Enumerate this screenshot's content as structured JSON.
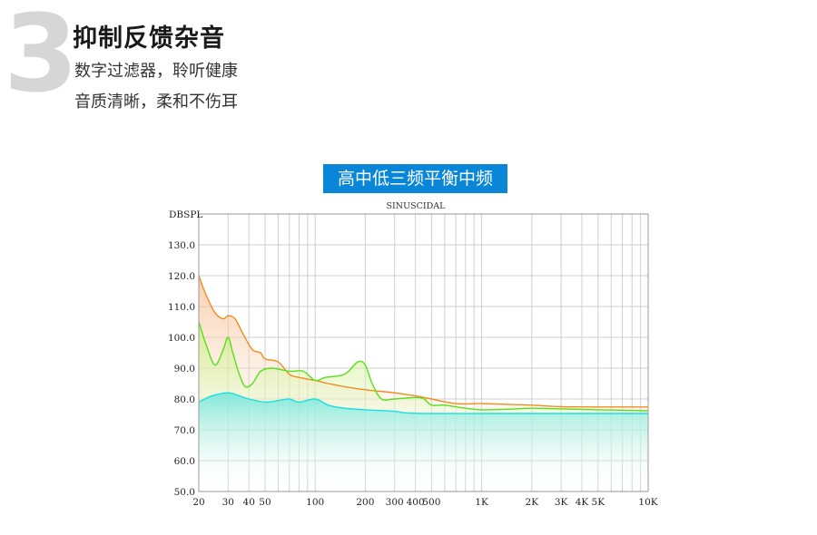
{
  "section": {
    "number": "3",
    "title": "抑制反馈杂音",
    "line1": "数字过滤器，聆听健康",
    "line2": "音质清晰，柔和不伤耳"
  },
  "banner": {
    "label": "高中低三频平衡中频"
  },
  "chart_data": {
    "type": "area",
    "title": "SINUSCIDAL",
    "ylabel": "DBSPL",
    "xscale": "log",
    "xlim": [
      20,
      10000
    ],
    "ylim": [
      50,
      140
    ],
    "y_ticks": [
      {
        "v": 50,
        "label": "50.0"
      },
      {
        "v": 60,
        "label": "60.0"
      },
      {
        "v": 70,
        "label": "70.0"
      },
      {
        "v": 80,
        "label": "80.0"
      },
      {
        "v": 90,
        "label": "90.0"
      },
      {
        "v": 100,
        "label": "100.0"
      },
      {
        "v": 110,
        "label": "110.0"
      },
      {
        "v": 120,
        "label": "120.0"
      },
      {
        "v": 130,
        "label": "130.0"
      }
    ],
    "x_ticks": [
      {
        "v": 20,
        "label": "20"
      },
      {
        "v": 30,
        "label": "30"
      },
      {
        "v": 40,
        "label": "40"
      },
      {
        "v": 50,
        "label": "50"
      },
      {
        "v": 100,
        "label": "100"
      },
      {
        "v": 200,
        "label": "200"
      },
      {
        "v": 300,
        "label": "300"
      },
      {
        "v": 400,
        "label": "400"
      },
      {
        "v": 500,
        "label": "500"
      },
      {
        "v": 1000,
        "label": "1K"
      },
      {
        "v": 2000,
        "label": "2K"
      },
      {
        "v": 3000,
        "label": "3K"
      },
      {
        "v": 4000,
        "label": "4K"
      },
      {
        "v": 5000,
        "label": "5K"
      },
      {
        "v": 10000,
        "label": "10K"
      }
    ],
    "grid": true,
    "series": [
      {
        "color": "#f28c1e",
        "fill": "#f7c9a6",
        "points": [
          [
            20,
            120
          ],
          [
            22,
            114
          ],
          [
            25,
            108
          ],
          [
            28,
            106
          ],
          [
            30,
            107
          ],
          [
            33,
            106
          ],
          [
            37,
            101
          ],
          [
            42,
            96
          ],
          [
            47,
            95
          ],
          [
            50,
            93
          ],
          [
            60,
            92
          ],
          [
            70,
            88
          ],
          [
            80,
            87
          ],
          [
            100,
            86
          ],
          [
            120,
            85
          ],
          [
            150,
            84
          ],
          [
            200,
            83
          ],
          [
            300,
            82
          ],
          [
            400,
            81
          ],
          [
            500,
            80
          ],
          [
            700,
            78.5
          ],
          [
            1000,
            78.5
          ],
          [
            1500,
            78.2
          ],
          [
            2000,
            78
          ],
          [
            3000,
            77.5
          ],
          [
            5000,
            77.4
          ],
          [
            10000,
            77.4
          ]
        ]
      },
      {
        "color": "#56e01a",
        "fill": "#d4f3a8",
        "points": [
          [
            20,
            105
          ],
          [
            22,
            98
          ],
          [
            25,
            91
          ],
          [
            28,
            96
          ],
          [
            30,
            100
          ],
          [
            32,
            95
          ],
          [
            35,
            88
          ],
          [
            38,
            84
          ],
          [
            42,
            85
          ],
          [
            47,
            89
          ],
          [
            55,
            90
          ],
          [
            70,
            89
          ],
          [
            85,
            89
          ],
          [
            100,
            86
          ],
          [
            115,
            87
          ],
          [
            150,
            88
          ],
          [
            180,
            92
          ],
          [
            200,
            91
          ],
          [
            220,
            85
          ],
          [
            250,
            80
          ],
          [
            300,
            80
          ],
          [
            400,
            80.5
          ],
          [
            450,
            80
          ],
          [
            500,
            78
          ],
          [
            600,
            78
          ],
          [
            800,
            77
          ],
          [
            1000,
            76.5
          ],
          [
            1500,
            76.7
          ],
          [
            2000,
            77
          ],
          [
            3000,
            76.8
          ],
          [
            5000,
            76.5
          ],
          [
            10000,
            76.2
          ]
        ]
      },
      {
        "color": "#19e0e0",
        "fill": "#a6f0ea",
        "points": [
          [
            20,
            79
          ],
          [
            24,
            81
          ],
          [
            30,
            82
          ],
          [
            35,
            81
          ],
          [
            40,
            80
          ],
          [
            50,
            79
          ],
          [
            60,
            79.5
          ],
          [
            70,
            80
          ],
          [
            80,
            79
          ],
          [
            100,
            80
          ],
          [
            120,
            78
          ],
          [
            150,
            77
          ],
          [
            200,
            76.5
          ],
          [
            300,
            76
          ],
          [
            350,
            75.5
          ],
          [
            500,
            75.3
          ],
          [
            1000,
            75.3
          ],
          [
            2000,
            75.3
          ],
          [
            5000,
            75.3
          ],
          [
            10000,
            75.3
          ]
        ]
      }
    ]
  }
}
